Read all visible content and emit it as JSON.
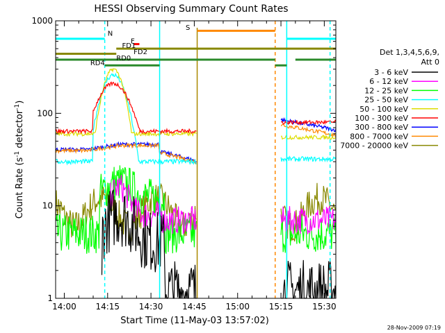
{
  "chart_data": {
    "type": "line",
    "title": "HESSI Observing Summary Count Rates",
    "xlabel": "Start Time (11-May-03 13:57:02)",
    "ylabel_main": "Count Rate (s",
    "ylabel_sup1": "-1",
    "ylabel_mid": " detector",
    "ylabel_sup2": "-1",
    "ylabel_end": ")",
    "footer": "28-Nov-2009 07:19",
    "y_scale": "log",
    "ylim": [
      1,
      1000
    ],
    "xlim": [
      "13:57",
      "15:34"
    ],
    "x_ticks": [
      "14:00",
      "14:15",
      "14:30",
      "14:45",
      "15:00",
      "15:15",
      "15:30"
    ],
    "y_ticks": [
      "1",
      "10",
      "100",
      "1000"
    ],
    "legend": {
      "header1": "Det 1,3,4,5,6,9,",
      "header2": "Att 0",
      "placement": "right"
    },
    "series": [
      {
        "name": "3 - 6 keV",
        "color": "#000000"
      },
      {
        "name": "6 - 12 keV",
        "color": "#ff00ff"
      },
      {
        "name": "12 - 25 keV",
        "color": "#00ff00"
      },
      {
        "name": "25 - 50 keV",
        "color": "#00ffff"
      },
      {
        "name": "50 - 100 keV",
        "color": "#dddd00"
      },
      {
        "name": "100 - 300 keV",
        "color": "#ff0000"
      },
      {
        "name": "300 - 800 keV",
        "color": "#0000ff"
      },
      {
        "name": "800 - 7000 keV",
        "color": "#ff8800"
      },
      {
        "name": "7000 - 20000 keV",
        "color": "#888800"
      }
    ],
    "flag_labels": [
      "N",
      "S",
      "F",
      "FD1",
      "FD2",
      "RD0",
      "RD4"
    ],
    "dashed_verticals_cyan": [
      "14:14",
      "15:32"
    ],
    "dashed_verticals_orange": [
      "15:13"
    ],
    "solid_verticals_cyan": [
      "14:33",
      "15:17"
    ],
    "solid_verticals_olive": [
      "14:46"
    ]
  }
}
